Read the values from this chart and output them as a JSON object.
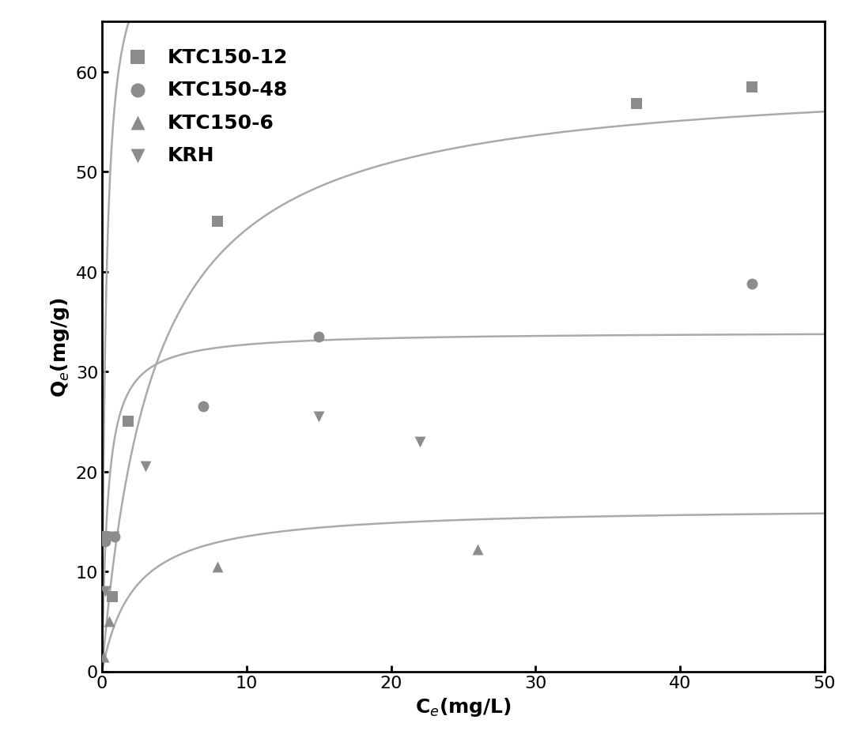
{
  "series": [
    {
      "label": "KTC150-12",
      "marker": "s",
      "color": "#8c8c8c",
      "x_data": [
        0.15,
        0.7,
        1.8,
        8.0,
        37.0,
        45.0
      ],
      "y_data": [
        13.5,
        7.5,
        25.0,
        45.0,
        56.8,
        58.5
      ],
      "Qmax": 75.0,
      "KL": 3.5
    },
    {
      "label": "KTC150-48",
      "marker": "o",
      "color": "#8c8c8c",
      "x_data": [
        0.2,
        0.9,
        7.0,
        15.0,
        45.0
      ],
      "y_data": [
        13.0,
        13.5,
        26.5,
        33.5,
        38.8
      ],
      "Qmax": 60.0,
      "KL": 0.28
    },
    {
      "label": "KTC150-6",
      "marker": "^",
      "color": "#8c8c8c",
      "x_data": [
        0.1,
        0.5,
        8.0,
        26.0
      ],
      "y_data": [
        1.5,
        5.0,
        10.5,
        12.2
      ],
      "Qmax": 16.5,
      "KL": 0.45
    },
    {
      "label": "KRH",
      "marker": "v",
      "color": "#8c8c8c",
      "x_data": [
        0.2,
        0.8,
        3.0,
        15.0,
        22.0
      ],
      "y_data": [
        8.0,
        13.5,
        20.5,
        25.5,
        23.0
      ],
      "Qmax": 34.0,
      "KL": 2.5
    }
  ],
  "xlabel": "C$_e$(mg/L)",
  "ylabel": "Q$_e$(mg/g)",
  "xlim": [
    0,
    50
  ],
  "ylim": [
    0,
    65
  ],
  "xticks": [
    0,
    10,
    20,
    30,
    40,
    50
  ],
  "yticks": [
    0,
    10,
    20,
    30,
    40,
    50,
    60
  ],
  "curve_color": "#aaaaaa",
  "marker_color": "#8c8c8c",
  "marker_size": 100,
  "line_width": 1.8,
  "background_color": "#ffffff",
  "legend_fontsize": 18,
  "axis_label_fontsize": 18,
  "tick_fontsize": 16
}
